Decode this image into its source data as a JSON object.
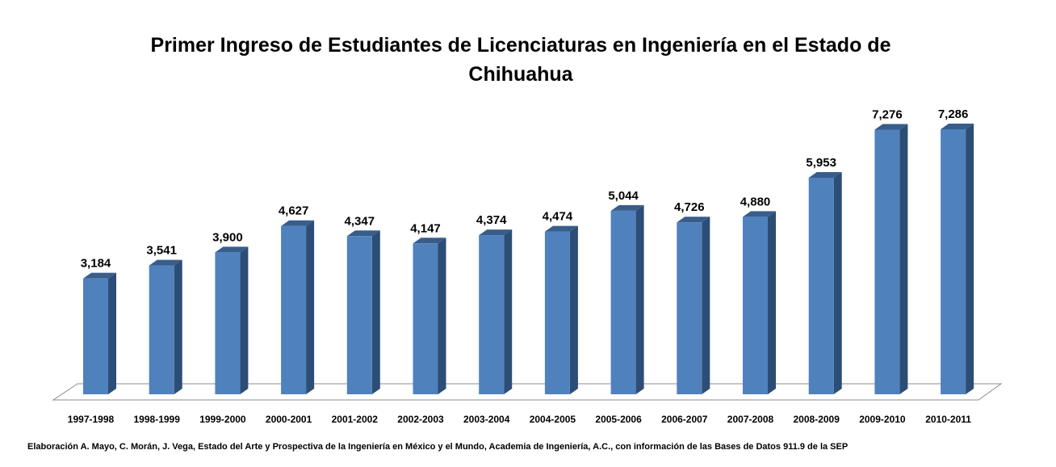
{
  "chart_data": {
    "type": "bar",
    "title": "Primer Ingreso de Estudiantes de Licenciaturas en Ingeniería en el Estado de Chihuahua",
    "categories": [
      "1997-1998",
      "1998-1999",
      "1999-2000",
      "2000-2001",
      "2001-2002",
      "2002-2003",
      "2003-2004",
      "2004-2005",
      "2005-2006",
      "2006-2007",
      "2007-2008",
      "2008-2009",
      "2009-2010",
      "2010-2011"
    ],
    "values": [
      3184,
      3541,
      3900,
      4627,
      4347,
      4147,
      4374,
      4474,
      5044,
      4726,
      4880,
      5953,
      7276,
      7286
    ],
    "data_labels": [
      "3,184",
      "3,541",
      "3,900",
      "4,627",
      "4,347",
      "4,147",
      "4,374",
      "4,474",
      "5,044",
      "4,726",
      "4,880",
      "5,953",
      "7,276",
      "7,286"
    ],
    "ylim": [
      0,
      7286
    ],
    "grid": false,
    "legend": "none",
    "colors": {
      "bar_front": "#4f81bd",
      "bar_side": "#2c4d75",
      "bar_top": "#385d8a",
      "floor": "#ffffff",
      "floor_edge": "#8c8c8c"
    }
  },
  "source_note": "Elaboración A. Mayo, C. Morán, J. Vega, Estado del Arte y Prospectiva de la Ingeniería en México y el Mundo, Academia de Ingeniería, A.C., con información de las Bases de Datos  911.9  de la SEP"
}
